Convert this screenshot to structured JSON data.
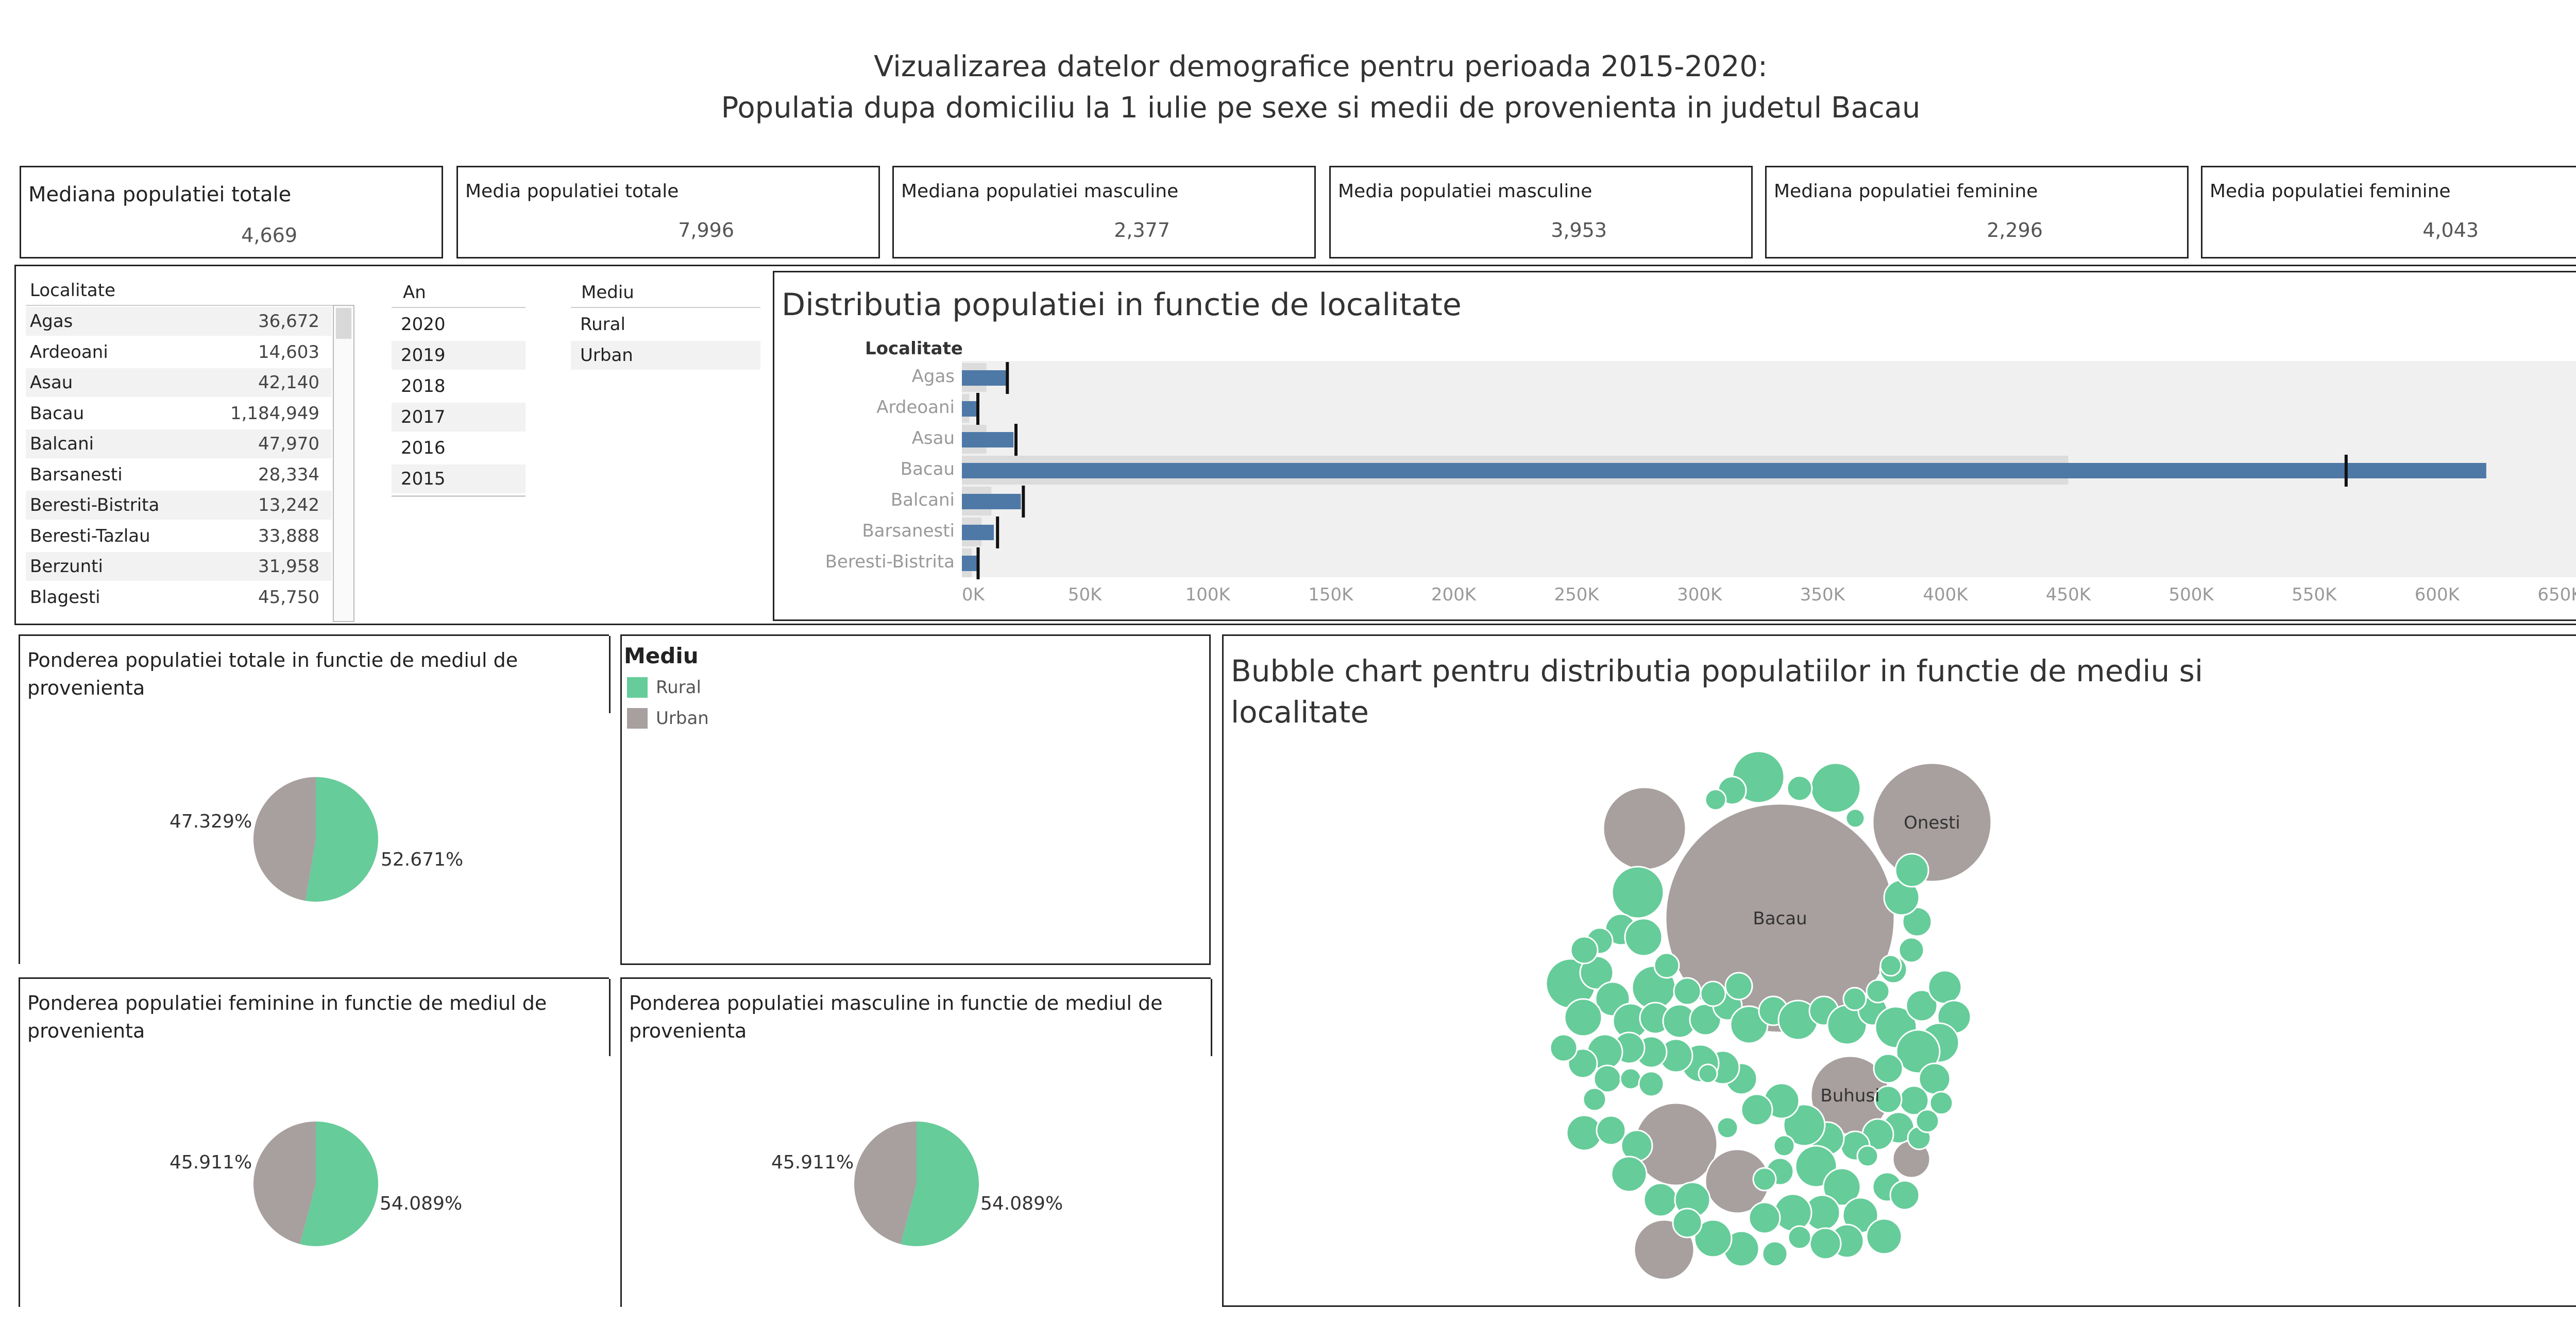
{
  "header": {
    "title_line1": "Vizualizarea datelor demografice pentru perioada 2015-2020:",
    "title_line2": "Populatia dupa domiciliu la 1 iulie pe sexe si medii de provenienta in judetul Bacau"
  },
  "kpis": [
    {
      "label": "Mediana populatiei totale",
      "value": "4,669"
    },
    {
      "label": "Media populatiei totale",
      "value": "7,996"
    },
    {
      "label": "Mediana populatiei masculine",
      "value": "2,377"
    },
    {
      "label": "Media populatiei masculine",
      "value": "3,953"
    },
    {
      "label": "Mediana populatiei feminine",
      "value": "2,296"
    },
    {
      "label": "Media populatiei feminine",
      "value": "4,043"
    }
  ],
  "filters": {
    "localitate": {
      "header": "Localitate",
      "rows": [
        {
          "name": "Agas",
          "value": "36,672"
        },
        {
          "name": "Ardeoani",
          "value": "14,603"
        },
        {
          "name": "Asau",
          "value": "42,140"
        },
        {
          "name": "Bacau",
          "value": "1,184,949"
        },
        {
          "name": "Balcani",
          "value": "47,970"
        },
        {
          "name": "Barsanesti",
          "value": "28,334"
        },
        {
          "name": "Beresti-Bistrita",
          "value": "13,242"
        },
        {
          "name": "Beresti-Tazlau",
          "value": "33,888"
        },
        {
          "name": "Berzunti",
          "value": "31,958"
        },
        {
          "name": "Blagesti",
          "value": "45,750"
        }
      ]
    },
    "an": {
      "header": "An",
      "rows": [
        "2020",
        "2019",
        "2018",
        "2017",
        "2016",
        "2015"
      ]
    },
    "mediu": {
      "header": "Mediu",
      "rows": [
        "Rural",
        "Urban"
      ]
    }
  },
  "colors": {
    "rural": "#66cc99",
    "urban": "#a89f9f",
    "bar": "#4e79a7",
    "band_light": "#dcdcdc",
    "band_dark": "#c4c4c4"
  },
  "chart_data": [
    {
      "type": "bar",
      "title": "Distributia populatiei in functie de localitate",
      "ylabel": "Localitate",
      "categories": [
        "Agas",
        "Ardeoani",
        "Asau",
        "Bacau",
        "Balcani",
        "Barsanesti",
        "Beresti-Bistrita"
      ],
      "values": [
        18000,
        6000,
        21000,
        620000,
        24000,
        13000,
        6500
      ],
      "reference_values": [
        18500,
        6500,
        22000,
        563000,
        25000,
        14500,
        6600
      ],
      "band_values": [
        10000,
        3000,
        10000,
        450000,
        12000,
        8000,
        4000
      ],
      "xlim": [
        0,
        650000
      ],
      "xticks": [
        "0K",
        "50K",
        "100K",
        "150K",
        "200K",
        "250K",
        "300K",
        "350K",
        "400K",
        "450K",
        "500K",
        "550K",
        "600K",
        "650K"
      ]
    },
    {
      "type": "pie",
      "title": "Ponderea populatiei totale in functie de mediul de provenienta",
      "slices": [
        {
          "label": "Rural",
          "value": 52.671,
          "text": "52.671%"
        },
        {
          "label": "Urban",
          "value": 47.329,
          "text": "47.329%"
        }
      ]
    },
    {
      "type": "pie",
      "title": "Ponderea populatiei feminine in functie de mediul de provenienta",
      "slices": [
        {
          "label": "Rural",
          "value": 54.089,
          "text": "54.089%"
        },
        {
          "label": "Urban",
          "value": 45.911,
          "text": "45.911%"
        }
      ]
    },
    {
      "type": "pie",
      "title": "Ponderea populatiei masculine in functie de mediul de provenienta",
      "slices": [
        {
          "label": "Rural",
          "value": 54.089,
          "text": "54.089%"
        },
        {
          "label": "Urban",
          "value": 45.911,
          "text": "45.911%"
        }
      ]
    },
    {
      "type": "scatter",
      "title": "Bubble chart pentru distributia populatiilor in functie de mediu si localitate",
      "labeled_bubbles": [
        {
          "name": "Bacau",
          "mediu": "Urban"
        },
        {
          "name": "Onesti",
          "mediu": "Urban"
        },
        {
          "name": "Buhusi",
          "mediu": "Urban"
        }
      ]
    }
  ],
  "legend": {
    "title": "Mediu",
    "items": [
      {
        "label": "Rural",
        "color": "#66cc99"
      },
      {
        "label": "Urban",
        "color": "#a89f9f"
      }
    ]
  }
}
